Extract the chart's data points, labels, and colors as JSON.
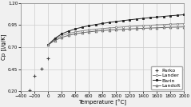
{
  "title": "",
  "xlabel": "Temperature [°C]",
  "ylabel": "Cp [J/g/K]",
  "xlim": [
    -400,
    2000
  ],
  "ylim": [
    0.2,
    1.2
  ],
  "xticks": [
    -400,
    -200,
    0,
    200,
    400,
    600,
    800,
    1000,
    1200,
    1400,
    1600,
    1800,
    2000
  ],
  "yticks": [
    0.2,
    0.45,
    0.7,
    0.95,
    1.2
  ],
  "grid_color": "#cccccc",
  "bg_color": "#f0f0f0",
  "plot_bg": "#f5f5f5",
  "series": {
    "Parko": {
      "color": "#444444",
      "marker": "+",
      "linestyle": "none",
      "data_x": [
        -273,
        -200,
        -100,
        0
      ],
      "data_y": [
        0.215,
        0.375,
        0.455,
        0.57
      ]
    },
    "Lander": {
      "color": "#888888",
      "marker": "s",
      "markersize": 2.0,
      "linestyle": "-",
      "data_x": [
        0,
        100,
        200,
        300,
        400,
        500,
        600,
        700,
        800,
        900,
        1000,
        1100,
        1200,
        1300,
        1400,
        1500,
        1600,
        1700,
        1800,
        1900,
        2000
      ],
      "data_y": [
        0.726,
        0.79,
        0.83,
        0.855,
        0.872,
        0.885,
        0.895,
        0.903,
        0.91,
        0.917,
        0.923,
        0.929,
        0.934,
        0.939,
        0.944,
        0.948,
        0.952,
        0.956,
        0.96,
        0.963,
        0.966
      ]
    },
    "Barin": {
      "color": "#222222",
      "marker": "s",
      "markersize": 2.0,
      "linestyle": "-",
      "data_x": [
        0,
        100,
        200,
        300,
        400,
        500,
        600,
        700,
        800,
        900,
        1000,
        1100,
        1200,
        1300,
        1400,
        1500,
        1600,
        1700,
        1800,
        1900,
        2000
      ],
      "data_y": [
        0.726,
        0.8,
        0.85,
        0.882,
        0.906,
        0.926,
        0.942,
        0.956,
        0.968,
        0.98,
        0.99,
        1.0,
        1.009,
        1.018,
        1.026,
        1.034,
        1.041,
        1.048,
        1.055,
        1.061,
        1.067
      ]
    },
    "Landolt": {
      "color": "#666666",
      "marker": "^",
      "markersize": 2.0,
      "linestyle": "-",
      "data_x": [
        0,
        100,
        200,
        300,
        400,
        500,
        600,
        700,
        800,
        900,
        1000,
        1100,
        1200,
        1300,
        1400,
        1500,
        1600,
        1700,
        1800,
        1900,
        2000
      ],
      "data_y": [
        0.726,
        0.776,
        0.81,
        0.833,
        0.85,
        0.863,
        0.873,
        0.881,
        0.887,
        0.893,
        0.898,
        0.902,
        0.906,
        0.91,
        0.913,
        0.916,
        0.919,
        0.922,
        0.925,
        0.927,
        0.929
      ]
    }
  },
  "legend_fontsize": 4.5,
  "axis_fontsize": 5.0,
  "tick_fontsize": 4.0
}
